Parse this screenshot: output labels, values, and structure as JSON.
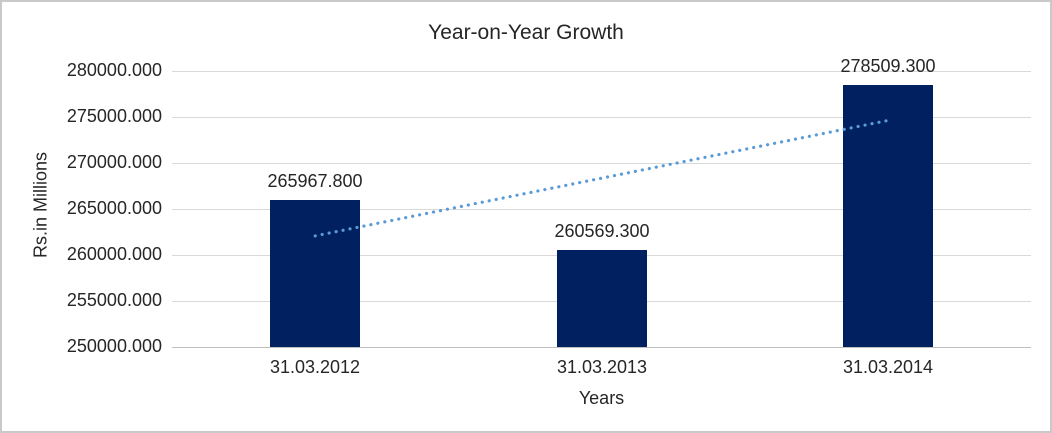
{
  "chart_data": {
    "type": "bar",
    "title": "Year-on-Year Growth",
    "xlabel": "Years",
    "ylabel": "Rs.in Millions",
    "categories": [
      "31.03.2012",
      "31.03.2013",
      "31.03.2014"
    ],
    "values": [
      265967.8,
      260569.3,
      278509.3
    ],
    "data_labels": [
      "265967.800",
      "260569.300",
      "278509.300"
    ],
    "ylim": [
      250000,
      280000
    ],
    "yticks": [
      280000,
      275000,
      270000,
      265000,
      260000,
      255000,
      250000
    ],
    "ytick_labels": [
      "280000.000",
      "275000.000",
      "270000.000",
      "265000.000",
      "260000.000",
      "255000.000",
      "250000.000"
    ],
    "grid": true,
    "legend": "none",
    "bar_color": "#002060",
    "trendline": {
      "type": "linear",
      "style": "dotted",
      "color": "#5B9BD5",
      "start_value": 262078,
      "end_value": 274620
    },
    "colors": {
      "gridline": "#D9D9D9",
      "axis_line": "#BFBFBF",
      "text": "#262626",
      "border": "#C9C9C9",
      "background": "#FFFFFF"
    }
  }
}
